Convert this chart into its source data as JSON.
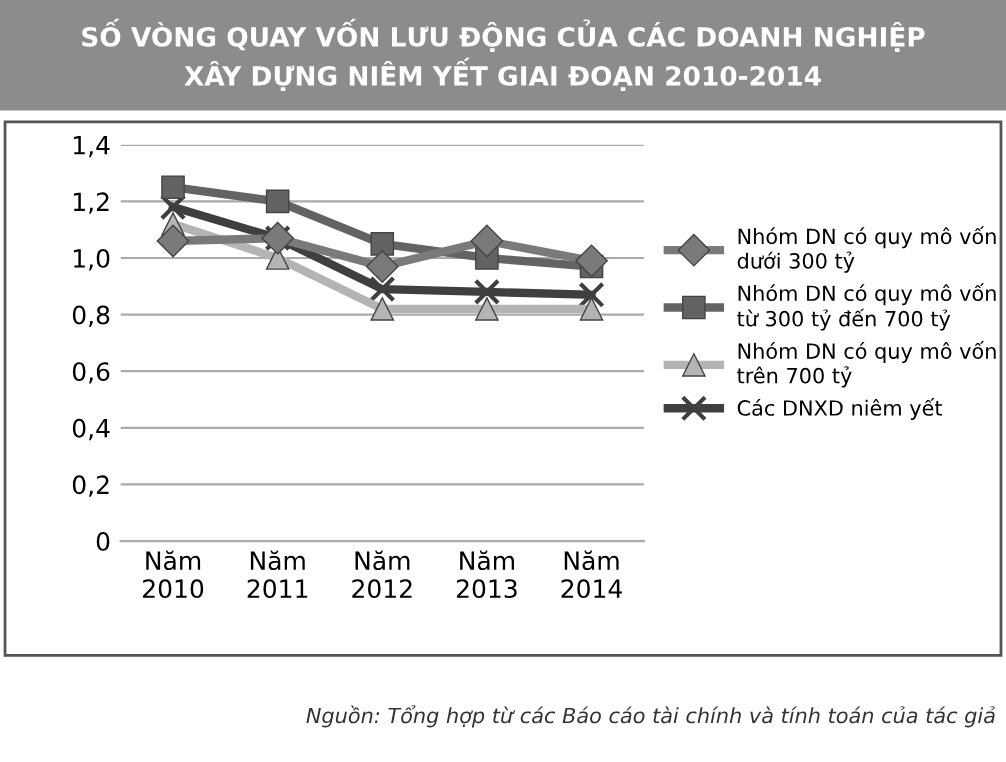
{
  "chart_data": {
    "type": "line",
    "title": "SỐ VÒNG QUAY VỐN LƯU ĐỘNG CỦA CÁC DOANH NGHIỆP\nXÂY DỰNG NIÊM YẾT GIAI ĐOẠN 2010-2014",
    "categories": [
      "Năm\n2010",
      "Năm\n2011",
      "Năm\n2012",
      "Năm\n2013",
      "Năm\n2014"
    ],
    "series": [
      {
        "name": "Nhóm DN có quy mô vốn\ndưới 300 tỷ",
        "color": "#7a7a7a",
        "marker": "diamond",
        "values": [
          1.06,
          1.07,
          0.97,
          1.06,
          0.99
        ]
      },
      {
        "name": "Nhóm DN có quy mô vốn\ntừ 300 tỷ đến 700 tỷ",
        "color": "#636363",
        "marker": "square",
        "values": [
          1.25,
          1.2,
          1.05,
          1.0,
          0.97
        ]
      },
      {
        "name": "Nhóm DN có quy mô vốn\ntrên 700 tỷ",
        "color": "#b4b4b4",
        "marker": "triangle",
        "values": [
          1.12,
          1.0,
          0.82,
          0.82,
          0.82
        ]
      },
      {
        "name": "Các DNXD niêm yết",
        "color": "#3f3f3f",
        "marker": "cross",
        "values": [
          1.18,
          1.07,
          0.89,
          0.88,
          0.87
        ]
      }
    ],
    "ylim": [
      0,
      1.4
    ],
    "yticks": [
      {
        "value": 0,
        "label": "0"
      },
      {
        "value": 0.2,
        "label": "0,2"
      },
      {
        "value": 0.4,
        "label": "0,4"
      },
      {
        "value": 0.6,
        "label": "0,6"
      },
      {
        "value": 0.8,
        "label": "0,8"
      },
      {
        "value": 1.0,
        "label": "1,0"
      },
      {
        "value": 1.2,
        "label": "1,2"
      },
      {
        "value": 1.4,
        "label": "1,4"
      }
    ],
    "grid": "y",
    "legend": "right",
    "line_style": "solid",
    "annotations": [
      "Nguồn: Tổng hợp từ các Báo cáo tài chính và tính toán của tác giả"
    ]
  }
}
